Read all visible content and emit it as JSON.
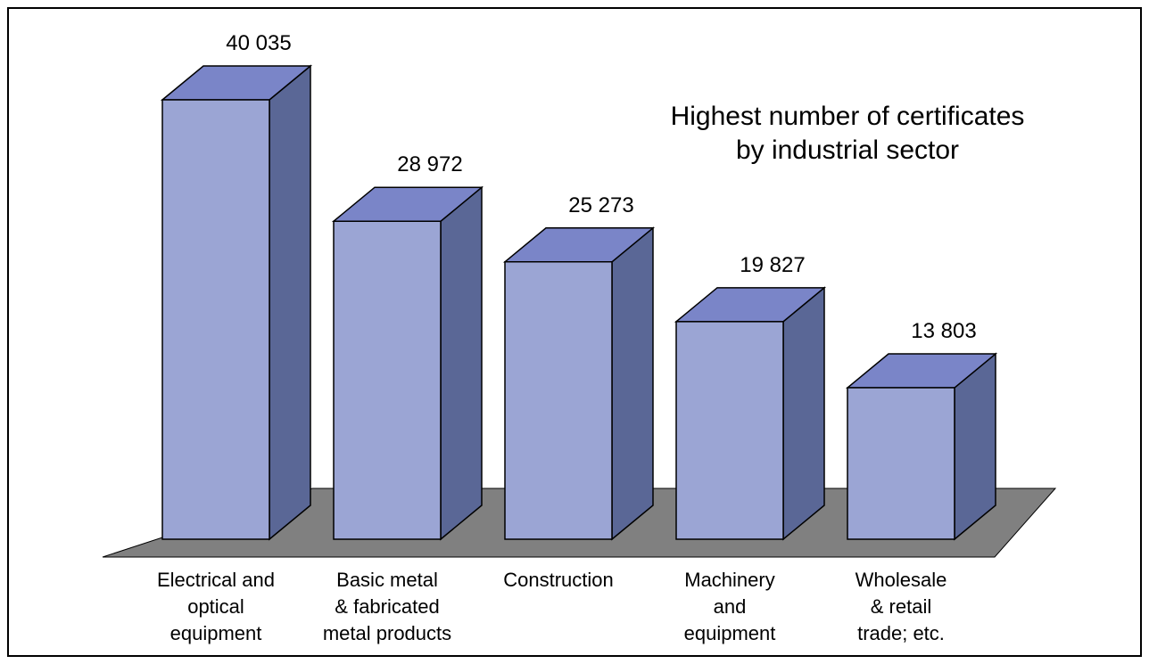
{
  "chart_data": {
    "type": "bar3d",
    "title": "Highest number of certificates\nby industrial sector",
    "categories": [
      "Electrical and\noptical\nequipment",
      "Basic metal\n& fabricated\nmetal products",
      "Construction",
      "Machinery\nand\nequipment",
      "Wholesale\n& retail\ntrade; etc."
    ],
    "values": [
      40035,
      28972,
      25273,
      19827,
      13803
    ],
    "value_labels": [
      "40 035",
      "28 972",
      "25 273",
      "19 827",
      "13 803"
    ],
    "color": "#9ba5d4"
  }
}
